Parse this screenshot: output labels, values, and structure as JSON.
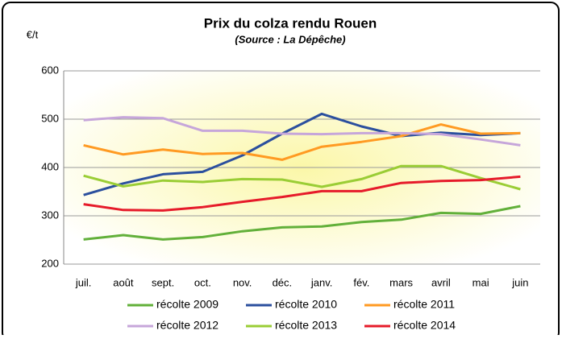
{
  "chart_data": {
    "type": "line",
    "title": "Prix du colza rendu Rouen",
    "subtitle": "(Source : La Dépêche)",
    "y_label": "€/t",
    "categories": [
      "juil.",
      "août",
      "sept.",
      "oct.",
      "nov.",
      "déc.",
      "janv.",
      "fév.",
      "mars",
      "avril",
      "mai",
      "juin"
    ],
    "series": [
      {
        "name": "récolte 2009",
        "color": "#62b03a",
        "values": [
          251,
          260,
          251,
          256,
          268,
          276,
          278,
          287,
          292,
          306,
          304,
          320
        ]
      },
      {
        "name": "récolte 2010",
        "color": "#2b4f9e",
        "values": [
          343,
          367,
          386,
          391,
          425,
          470,
          511,
          485,
          465,
          472,
          467,
          471
        ]
      },
      {
        "name": "récolte 2011",
        "color": "#ff9a22",
        "values": [
          446,
          427,
          437,
          428,
          430,
          416,
          443,
          453,
          465,
          489,
          470,
          471
        ]
      },
      {
        "name": "récolte 2012",
        "color": "#c6a6da",
        "values": [
          498,
          504,
          502,
          476,
          476,
          470,
          469,
          471,
          471,
          469,
          458,
          446
        ]
      },
      {
        "name": "récolte 2013",
        "color": "#9acd35",
        "values": [
          383,
          361,
          373,
          370,
          376,
          375,
          360,
          376,
          403,
          403,
          378,
          355
        ]
      },
      {
        "name": "récolte 2014",
        "color": "#e61b2a",
        "values": [
          324,
          312,
          311,
          318,
          329,
          339,
          351,
          351,
          368,
          372,
          374,
          381
        ]
      }
    ],
    "ylim": [
      200,
      600
    ],
    "yticks": [
      200,
      300,
      400,
      500,
      600
    ],
    "grid": true
  }
}
